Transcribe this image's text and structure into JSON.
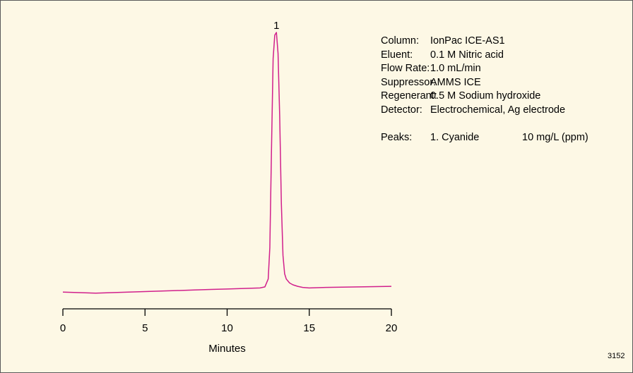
{
  "chart_data": {
    "type": "line",
    "xlabel": "Minutes",
    "xlim": [
      0,
      20
    ],
    "xticks": [
      0,
      5,
      10,
      15,
      20
    ],
    "series": [
      {
        "color": "#d1208c",
        "x": [
          0,
          1,
          2,
          3,
          4,
          5,
          6,
          7,
          8,
          9,
          10,
          11,
          12,
          12.3,
          12.5,
          12.6,
          12.7,
          12.8,
          12.9,
          13.0,
          13.1,
          13.2,
          13.3,
          13.4,
          13.5,
          13.6,
          13.8,
          14.0,
          14.3,
          14.6,
          15.0,
          16,
          17,
          18,
          19,
          20
        ],
        "y": [
          0.01,
          0.008,
          0.006,
          0.008,
          0.01,
          0.012,
          0.014,
          0.016,
          0.018,
          0.02,
          0.022,
          0.024,
          0.026,
          0.03,
          0.06,
          0.18,
          0.55,
          0.9,
          0.99,
          1.0,
          0.92,
          0.68,
          0.35,
          0.15,
          0.08,
          0.06,
          0.045,
          0.038,
          0.032,
          0.028,
          0.026,
          0.028,
          0.029,
          0.03,
          0.031,
          0.032
        ]
      }
    ],
    "annotations": [
      {
        "text": "1",
        "x": 13.0
      }
    ]
  },
  "info": {
    "rows": [
      {
        "key": "Column:",
        "value": "IonPac ICE-AS1"
      },
      {
        "key": "Eluent:",
        "value": "0.1 M Nitric acid"
      },
      {
        "key": "Flow Rate:",
        "value": "1.0 mL/min"
      },
      {
        "key": "Suppressor:",
        "value": "AMMS ICE"
      },
      {
        "key": "Regenerant:",
        "value": "0.5 M Sodium hydroxide"
      },
      {
        "key": "Detector:",
        "value": "Electrochemical, Ag electrode"
      }
    ],
    "peaks": {
      "key": "Peaks:",
      "name": "1. Cyanide",
      "conc": "10 mg/L (ppm)"
    }
  },
  "figure_id": "3152"
}
